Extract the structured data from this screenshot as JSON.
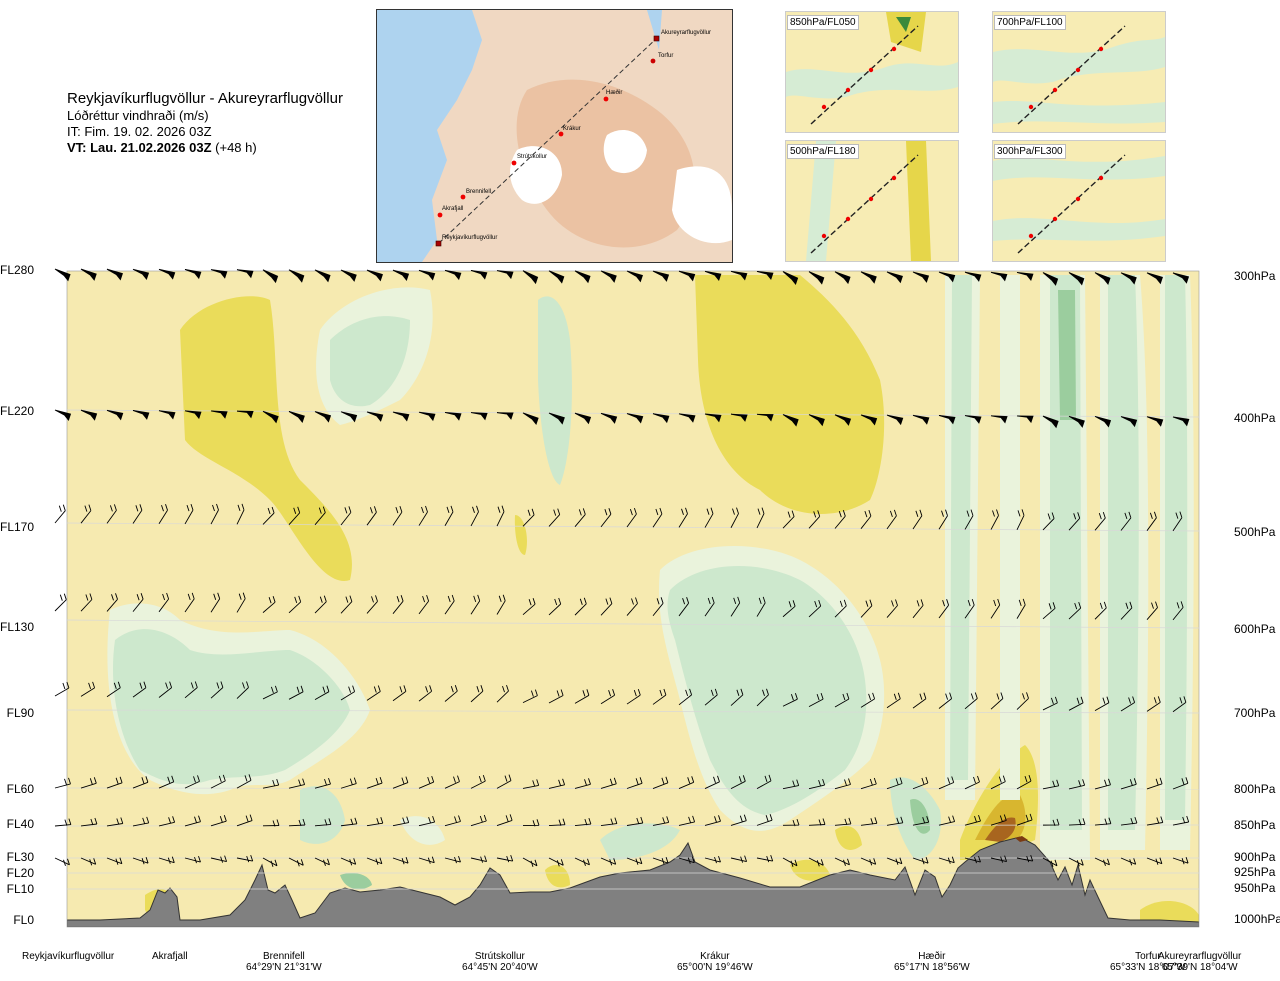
{
  "header": {
    "route": "Reykjavíkurflugvöllur - Akureyrarflugvöllur",
    "variable": "Lóðréttur vindhraði (m/s)",
    "issue_time": "IT: Fim. 19. 02. 2026 03Z",
    "valid_time": "VT: Lau. 21.02.2026 03Z",
    "lead": "(+48 h)"
  },
  "route_map": {
    "points": [
      "Akureyrarflugvöllur",
      "Torfur",
      "Hæðir",
      "Krákur",
      "Strútskollur",
      "Brennifell",
      "Akrafjall",
      "Reykjavíkurflugvöllur"
    ]
  },
  "insets": [
    {
      "label": "850hPa/FL050"
    },
    {
      "label": "700hPa/FL100"
    },
    {
      "label": "500hPa/FL180"
    },
    {
      "label": "300hPa/FL300"
    }
  ],
  "levels": [
    {
      "fl": "FL280",
      "p": "300hPa"
    },
    {
      "fl": "FL220",
      "p": "400hPa"
    },
    {
      "fl": "FL170",
      "p": "500hPa"
    },
    {
      "fl": "FL130",
      "p": "600hPa"
    },
    {
      "fl": "FL90",
      "p": "700hPa"
    },
    {
      "fl": "FL60",
      "p": "800hPa"
    },
    {
      "fl": "FL40",
      "p": "850hPa"
    },
    {
      "fl": "FL30",
      "p": "900hPa"
    },
    {
      "fl": "FL20",
      "p": "925hPa"
    },
    {
      "fl": "FL10",
      "p": "950hPa"
    },
    {
      "fl": "FL0",
      "p": "1000hPa"
    }
  ],
  "locations": [
    {
      "name": "Reykjavíkurflugvöllur",
      "coord": ""
    },
    {
      "name": "Akrafjall",
      "coord": ""
    },
    {
      "name": "Brennifell",
      "coord": "64°29'N 21°31'W"
    },
    {
      "name": "Strútskollur",
      "coord": "64°45'N 20°40'W"
    },
    {
      "name": "Krákur",
      "coord": "65°00'N 19°46'W"
    },
    {
      "name": "Hæðir",
      "coord": "65°17'N 18°56'W"
    },
    {
      "name": "Torfur",
      "coord": "65°33'N 18°07'W"
    },
    {
      "name": "Akureyrarflugvöllur",
      "coord": "65°39'N 18°04'W"
    }
  ],
  "colors": {
    "weak_down": "#f6eab0",
    "down": "#eadc5a",
    "strong_down": "#d8b62f",
    "weak_up": "#eaf3dc",
    "up": "#cde8cd",
    "strong_up": "#9bcd9e",
    "terrain": "#808080",
    "peak": "#7a3a12"
  }
}
